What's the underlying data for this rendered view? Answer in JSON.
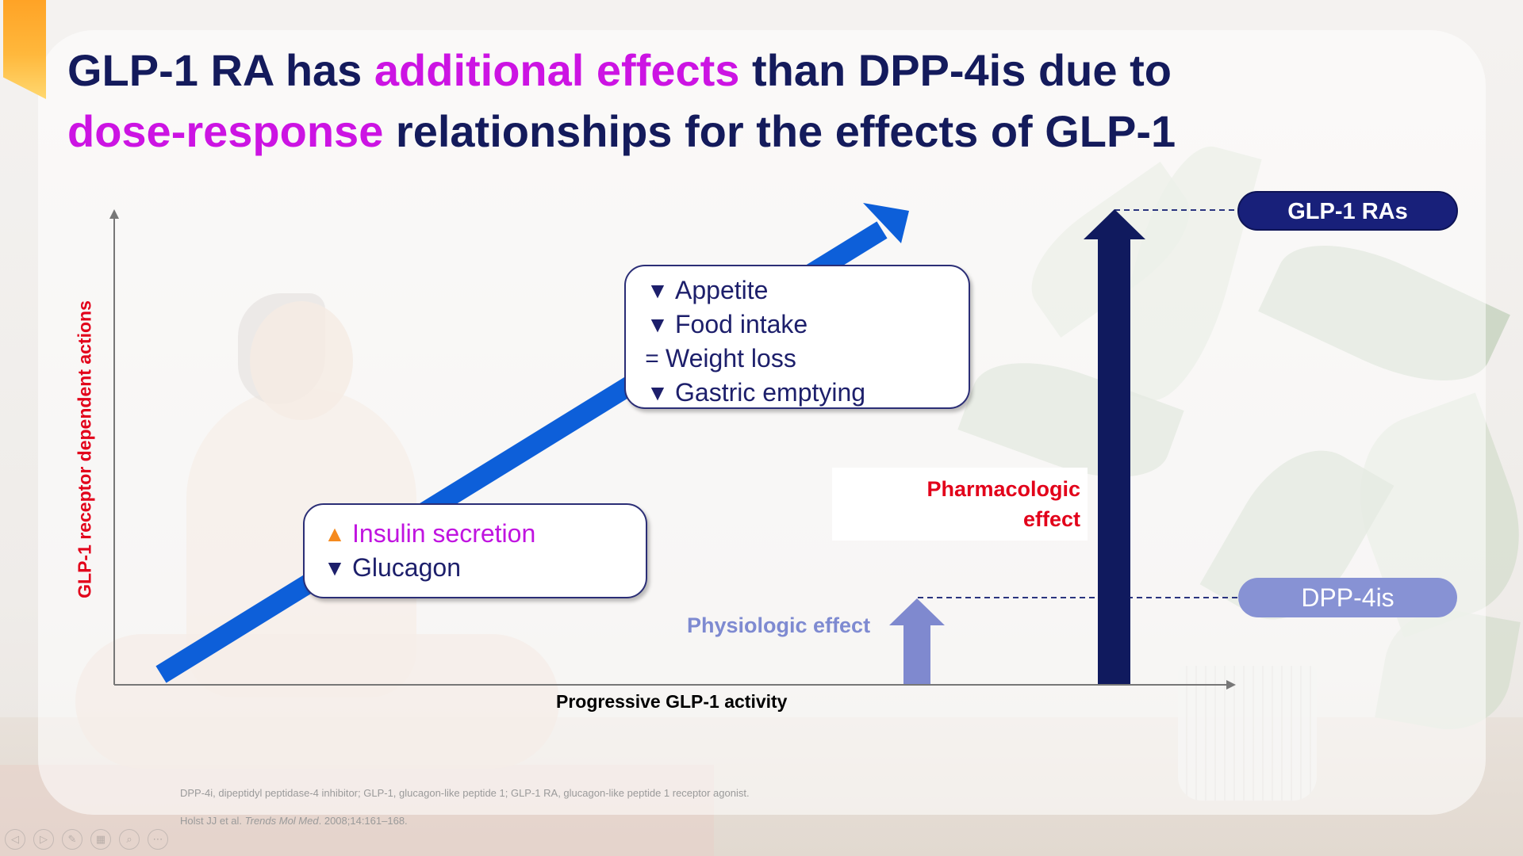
{
  "title": {
    "part1": "GLP-1 RA has ",
    "highlight1": "additional effects",
    "part2": " than DPP-4is due to ",
    "highlight2": "dose-response",
    "part3": " relationships for the effects of GLP-1"
  },
  "axes": {
    "x_label": "Progressive GLP-1 activity",
    "y_label": "GLP-1 receptor dependent actions"
  },
  "box_upper": {
    "lines": [
      {
        "mark": "▼",
        "text": "Appetite"
      },
      {
        "mark": "▼",
        "text": "Food intake"
      },
      {
        "mark": "=",
        "text": "Weight loss"
      },
      {
        "mark": "▼",
        "text": "Gastric emptying"
      }
    ]
  },
  "box_lower": {
    "lines": [
      {
        "mark": "▲",
        "text": "Insulin secretion"
      },
      {
        "mark": "▼",
        "text": "Glucagon"
      }
    ]
  },
  "pharmacologic_label": {
    "line1": "Pharmacologic",
    "line2": "effect"
  },
  "physiologic_label": "Physiologic effect",
  "pills": {
    "glp1": "GLP-1 RAs",
    "dpp4": "DPP-4is"
  },
  "colors": {
    "title": "#141b5c",
    "highlight": "#cc14e3",
    "diagonal_arrow": "#0d5fd9",
    "pharmacologic_arrow": "#101a5e",
    "physiologic_arrow": "#7f89cf",
    "red_label": "#e2001a"
  },
  "footnotes": {
    "abbrev": "DPP-4i, dipeptidyl peptidase-4 inhibitor; GLP-1, glucagon-like peptide 1; GLP-1 RA, glucagon-like peptide 1 receptor agonist.",
    "ref_authors": "Holst JJ et al. ",
    "ref_journal": "Trends Mol Med",
    "ref_rest": ". 2008;14:161–168."
  },
  "nav_icons": [
    "prev-icon",
    "next-icon",
    "pen-icon",
    "slides-icon",
    "zoom-icon",
    "more-icon"
  ]
}
